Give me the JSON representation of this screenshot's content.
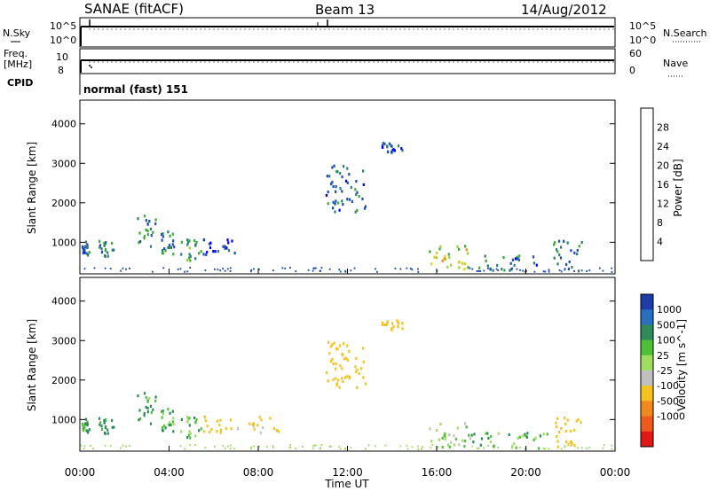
{
  "header": {
    "station": "SANAE (fitACF)",
    "beam": "Beam 13",
    "date": "14/Aug/2012"
  },
  "labels": {
    "nsky": "N.Sky",
    "freq_line1": "Freq.",
    "freq_line2": "[MHz]",
    "cpid": "CPID",
    "nsearch": "N.Search",
    "nave": "Nave",
    "mode_text": "normal (fast) 151"
  },
  "noise_panel": {
    "left_ticks": [
      "10^5",
      "10^0"
    ],
    "right_ticks": [
      "10^5",
      "10^0"
    ]
  },
  "freq_panel": {
    "left_ticks": [
      "10",
      "8"
    ],
    "right_ticks": [
      "60",
      "0"
    ]
  },
  "colors": {
    "power_scale": [
      "#0000ff",
      "#1f4fb0",
      "#2e7d78",
      "#3aaa38",
      "#9bd13a",
      "#f2c41a",
      "#f08a1e",
      "#ee5a1e",
      "#e8121e"
    ],
    "velocity_scale": [
      "#1c3ca8",
      "#2a6fbf",
      "#2e8a5a",
      "#4fbf3a",
      "#9fdc60",
      "#c0c0c0",
      "#f5c21f",
      "#f08a1e",
      "#ee5a1e",
      "#e01818"
    ]
  },
  "chart_data": [
    {
      "type": "heatmap",
      "title": "",
      "xlabel": "",
      "ylabel": "Slant Range [km]",
      "xticks": [
        "00:00",
        "04:00",
        "08:00",
        "12:00",
        "16:00",
        "20:00",
        "00:00"
      ],
      "yticks": [
        "1000",
        "2000",
        "3000",
        "4000"
      ],
      "ylim": [
        200,
        4600
      ],
      "colorbar_label": "Power [dB]",
      "colorbar_ticks": [
        "4",
        "8",
        "12",
        "16",
        "20",
        "24",
        "28"
      ],
      "scatter_regions": [
        {
          "x": [
            0.0,
            0.4
          ],
          "y": [
            700,
            1100
          ],
          "value": 8
        },
        {
          "x": [
            0.8,
            1.5
          ],
          "y": [
            650,
            1100
          ],
          "value": 10
        },
        {
          "x": [
            2.5,
            3.4
          ],
          "y": [
            900,
            1700
          ],
          "value": 10
        },
        {
          "x": [
            3.6,
            4.2
          ],
          "y": [
            700,
            1300
          ],
          "value": 9
        },
        {
          "x": [
            4.5,
            5.4
          ],
          "y": [
            500,
            1100
          ],
          "value": 12
        },
        {
          "x": [
            5.5,
            7.0
          ],
          "y": [
            700,
            1100
          ],
          "value": 6
        },
        {
          "x": [
            11.0,
            12.8
          ],
          "y": [
            1800,
            3000
          ],
          "value": 8
        },
        {
          "x": [
            13.5,
            14.5
          ],
          "y": [
            3300,
            3550
          ],
          "value": 6
        },
        {
          "x": [
            15.6,
            17.5
          ],
          "y": [
            300,
            950
          ],
          "value": 20
        },
        {
          "x": [
            17.5,
            20.5
          ],
          "y": [
            300,
            700
          ],
          "value": 8
        },
        {
          "x": [
            21.2,
            22.5
          ],
          "y": [
            300,
            1100
          ],
          "value": 10
        }
      ]
    },
    {
      "type": "heatmap",
      "title": "",
      "xlabel": "Time UT",
      "ylabel": "Slant Range [km]",
      "xticks": [
        "00:00",
        "04:00",
        "08:00",
        "12:00",
        "16:00",
        "20:00",
        "00:00"
      ],
      "yticks": [
        "1000",
        "2000",
        "3000",
        "4000"
      ],
      "ylim": [
        200,
        4600
      ],
      "colorbar_label": "Velocity [m s^-1]",
      "colorbar_ticks": [
        "1000",
        "500",
        "100",
        "25",
        "-25",
        "-100",
        "-500",
        "-1000"
      ],
      "scatter_regions": [
        {
          "x": [
            0.0,
            0.4
          ],
          "y": [
            700,
            1100
          ],
          "value": 100
        },
        {
          "x": [
            0.8,
            1.5
          ],
          "y": [
            650,
            1100
          ],
          "value": 150
        },
        {
          "x": [
            2.5,
            3.4
          ],
          "y": [
            900,
            1700
          ],
          "value": 120
        },
        {
          "x": [
            3.6,
            4.2
          ],
          "y": [
            700,
            1300
          ],
          "value": 100
        },
        {
          "x": [
            4.5,
            5.4
          ],
          "y": [
            500,
            1100
          ],
          "value": 50
        },
        {
          "x": [
            5.5,
            9.0
          ],
          "y": [
            700,
            1100
          ],
          "value": -150
        },
        {
          "x": [
            11.0,
            12.8
          ],
          "y": [
            1800,
            3000
          ],
          "value": -300
        },
        {
          "x": [
            13.5,
            14.5
          ],
          "y": [
            3300,
            3550
          ],
          "value": -200
        },
        {
          "x": [
            15.6,
            17.5
          ],
          "y": [
            300,
            950
          ],
          "value": 0
        },
        {
          "x": [
            17.5,
            21.0
          ],
          "y": [
            300,
            700
          ],
          "value": 80
        },
        {
          "x": [
            21.2,
            22.5
          ],
          "y": [
            300,
            1100
          ],
          "value": -200
        }
      ]
    }
  ]
}
